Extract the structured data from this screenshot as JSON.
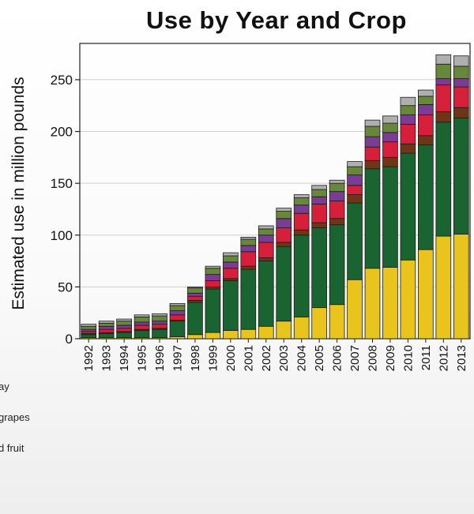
{
  "chart_data": {
    "type": "bar",
    "stacked": true,
    "title": "Use by Year and Crop",
    "xlabel": "",
    "ylabel": "Estimated use in million pounds",
    "ylim": [
      0,
      285
    ],
    "yticks": [
      0,
      50,
      100,
      150,
      200,
      250
    ],
    "grid": true,
    "categories": [
      "1992",
      "1993",
      "1994",
      "1995",
      "1996",
      "1997",
      "1998",
      "1999",
      "2000",
      "2001",
      "2002",
      "2003",
      "2004",
      "2005",
      "2006",
      "2007",
      "2008",
      "2009",
      "2010",
      "2011",
      "2012",
      "2013"
    ],
    "series": [
      {
        "color": "#e8c41c",
        "values": [
          1,
          1,
          1,
          1,
          1,
          2,
          4,
          6,
          8,
          9,
          12,
          17,
          21,
          30,
          33,
          57,
          68,
          69,
          76,
          86,
          99,
          101
        ]
      },
      {
        "color": "#1a6431",
        "values": [
          3,
          4,
          5,
          7,
          8,
          15,
          31,
          42,
          48,
          58,
          63,
          72,
          79,
          77,
          77,
          74,
          96,
          97,
          103,
          101,
          110,
          112
        ]
      },
      {
        "color": "#6e3616",
        "values": [
          1,
          1,
          1,
          1,
          1,
          1,
          2,
          2,
          2,
          3,
          3,
          4,
          5,
          5,
          6,
          8,
          8,
          9,
          9,
          9,
          10,
          10
        ]
      },
      {
        "color": "#d6203b",
        "values": [
          2,
          3,
          3,
          4,
          4,
          5,
          4,
          6,
          10,
          14,
          15,
          14,
          16,
          18,
          17,
          9,
          13,
          15,
          19,
          20,
          26,
          20
        ]
      },
      {
        "color": "#7a3d93",
        "values": [
          2,
          3,
          3,
          3,
          3,
          4,
          3,
          6,
          6,
          6,
          7,
          9,
          8,
          7,
          9,
          10,
          10,
          9,
          9,
          10,
          6,
          8
        ]
      },
      {
        "color": "#67873b",
        "values": [
          3,
          3,
          4,
          5,
          5,
          5,
          5,
          6,
          6,
          6,
          6,
          7,
          7,
          7,
          8,
          8,
          10,
          9,
          9,
          8,
          14,
          12
        ]
      },
      {
        "color": "#afafaf",
        "values": [
          2,
          2,
          2,
          2,
          2,
          2,
          1,
          2,
          3,
          2,
          3,
          3,
          3,
          4,
          3,
          5,
          6,
          7,
          8,
          6,
          9,
          10
        ]
      }
    ]
  },
  "legend": [
    "ay",
    "grapes",
    "d fruit"
  ]
}
